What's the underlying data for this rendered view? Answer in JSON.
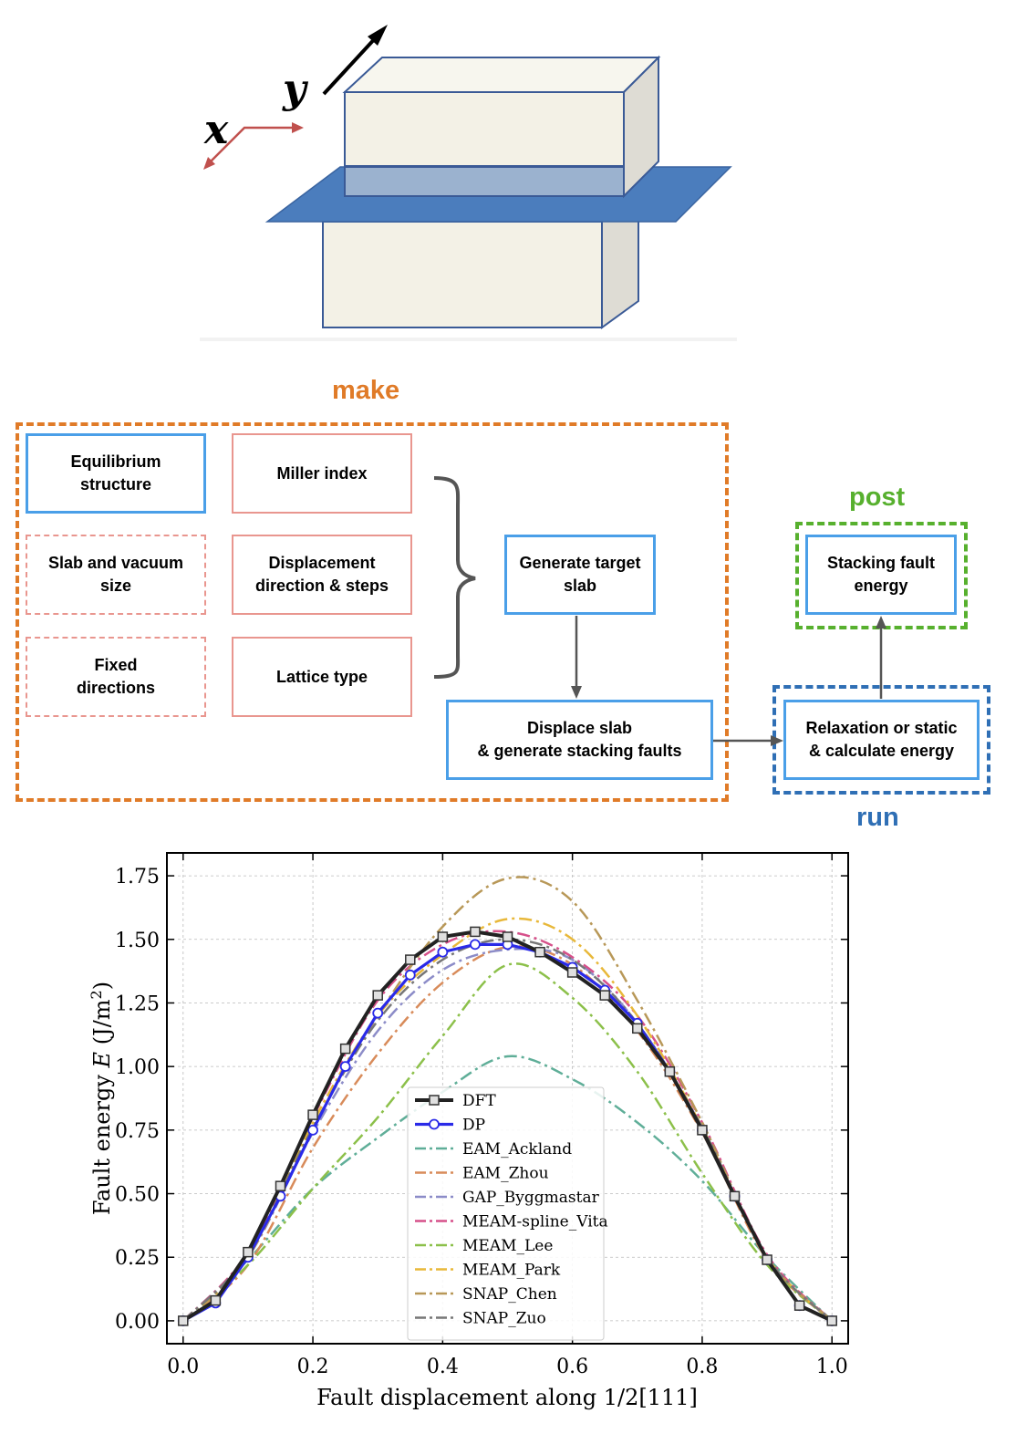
{
  "axes_schematic": {
    "x_label": "x",
    "y_label": "y"
  },
  "workflow": {
    "make": {
      "title": "make",
      "inputs": [
        {
          "key": "equilibrium",
          "label": "Equilibrium\nstructure"
        },
        {
          "key": "miller",
          "label": "Miller index"
        },
        {
          "key": "slab_vacuum",
          "label": "Slab and vacuum\nsize"
        },
        {
          "key": "displacement",
          "label": "Displacement\ndirection & steps"
        },
        {
          "key": "fixed_dirs",
          "label": "Fixed\ndirections"
        },
        {
          "key": "lattice",
          "label": "Lattice type"
        }
      ],
      "generate": "Generate target\nslab",
      "displace": "Displace slab\n& generate stacking faults"
    },
    "run": {
      "title": "run",
      "step": "Relaxation or static\n& calculate energy"
    },
    "post": {
      "title": "post",
      "step": "Stacking fault\nenergy"
    }
  },
  "colors": {
    "make": "#e07b28",
    "run": "#2f6fb5",
    "post": "#57b02e",
    "box_blue": "#4a9fe8",
    "box_red": "#e9968f"
  },
  "chart_data": {
    "type": "line",
    "xlabel": "Fault displacement along 1/2[111]",
    "ylabel_prefix": "Fault energy ",
    "ylabel_var": "E",
    "ylabel_unit": " (J/m",
    "ylabel_sup": "2",
    "ylabel_end": ")",
    "xlim": [
      -0.025,
      1.025
    ],
    "ylim": [
      -0.09,
      1.84
    ],
    "xticks": [
      "0.0",
      "0.2",
      "0.4",
      "0.6",
      "0.8",
      "1.0"
    ],
    "yticks": [
      "0.00",
      "0.25",
      "0.50",
      "0.75",
      "1.00",
      "1.25",
      "1.50",
      "1.75"
    ],
    "grid": true,
    "legend_position": "lower-center",
    "series": [
      {
        "name": "DFT",
        "color": "#222222",
        "style": "solid-square",
        "x": [
          0,
          0.05,
          0.1,
          0.15,
          0.2,
          0.25,
          0.3,
          0.35,
          0.4,
          0.45,
          0.5,
          0.55,
          0.6,
          0.65,
          0.7,
          0.75,
          0.8,
          0.85,
          0.9,
          0.95,
          1.0
        ],
        "y": [
          0.0,
          0.08,
          0.27,
          0.53,
          0.81,
          1.07,
          1.28,
          1.42,
          1.51,
          1.53,
          1.51,
          1.45,
          1.37,
          1.28,
          1.15,
          0.98,
          0.75,
          0.49,
          0.24,
          0.06,
          0.0
        ]
      },
      {
        "name": "DP",
        "color": "#2a2ae8",
        "style": "solid-circle",
        "x": [
          0,
          0.05,
          0.1,
          0.15,
          0.2,
          0.25,
          0.3,
          0.35,
          0.4,
          0.45,
          0.5,
          0.55,
          0.6,
          0.65,
          0.7,
          0.75,
          0.8,
          0.85,
          0.9,
          0.95,
          1.0
        ],
        "y": [
          0.0,
          0.07,
          0.25,
          0.49,
          0.75,
          1.0,
          1.21,
          1.36,
          1.45,
          1.48,
          1.48,
          1.45,
          1.39,
          1.3,
          1.17,
          0.98,
          0.75,
          0.49,
          0.24,
          0.06,
          0.0
        ]
      },
      {
        "name": "EAM_Ackland",
        "color": "#5fae98",
        "style": "dashdot",
        "x": [
          0,
          0.1,
          0.2,
          0.3,
          0.4,
          0.5,
          0.6,
          0.7,
          0.8,
          0.9,
          1.0
        ],
        "y": [
          0.0,
          0.24,
          0.52,
          0.72,
          0.9,
          1.04,
          0.95,
          0.78,
          0.55,
          0.25,
          0.0
        ]
      },
      {
        "name": "EAM_Zhou",
        "color": "#d88b5a",
        "style": "dashdot",
        "x": [
          0,
          0.1,
          0.2,
          0.3,
          0.4,
          0.5,
          0.6,
          0.7,
          0.8,
          0.9,
          1.0
        ],
        "y": [
          0.0,
          0.22,
          0.68,
          1.05,
          1.33,
          1.47,
          1.4,
          1.14,
          0.74,
          0.24,
          0.0
        ]
      },
      {
        "name": "GAP_Byggmastar",
        "color": "#8c8cc8",
        "style": "dashdot",
        "x": [
          0,
          0.1,
          0.2,
          0.3,
          0.4,
          0.5,
          0.6,
          0.7,
          0.8,
          0.9,
          1.0
        ],
        "y": [
          0.0,
          0.25,
          0.74,
          1.14,
          1.38,
          1.46,
          1.42,
          1.17,
          0.76,
          0.25,
          0.0
        ]
      },
      {
        "name": "MEAM-spline_Vita",
        "color": "#d6508a",
        "style": "dashdot",
        "x": [
          0,
          0.1,
          0.2,
          0.3,
          0.4,
          0.5,
          0.6,
          0.7,
          0.8,
          0.9,
          1.0
        ],
        "y": [
          0.0,
          0.27,
          0.8,
          1.26,
          1.48,
          1.53,
          1.43,
          1.2,
          0.78,
          0.26,
          0.0
        ]
      },
      {
        "name": "MEAM_Lee",
        "color": "#8cc04a",
        "style": "dashdot",
        "x": [
          0,
          0.1,
          0.2,
          0.3,
          0.4,
          0.5,
          0.6,
          0.7,
          0.8,
          0.9,
          1.0
        ],
        "y": [
          0.0,
          0.22,
          0.52,
          0.8,
          1.12,
          1.4,
          1.27,
          0.98,
          0.58,
          0.22,
          0.0
        ]
      },
      {
        "name": "MEAM_Park",
        "color": "#e8b83a",
        "style": "dashdot",
        "x": [
          0,
          0.1,
          0.2,
          0.3,
          0.4,
          0.5,
          0.6,
          0.7,
          0.8,
          0.9,
          1.0
        ],
        "y": [
          0.0,
          0.25,
          0.78,
          1.2,
          1.44,
          1.58,
          1.5,
          1.2,
          0.76,
          0.25,
          0.0
        ]
      },
      {
        "name": "SNAP_Chen",
        "color": "#b89858",
        "style": "dashdot",
        "x": [
          0,
          0.1,
          0.2,
          0.3,
          0.4,
          0.5,
          0.6,
          0.7,
          0.8,
          0.9,
          1.0
        ],
        "y": [
          0.0,
          0.25,
          0.76,
          1.2,
          1.55,
          1.74,
          1.65,
          1.26,
          0.78,
          0.25,
          0.0
        ]
      },
      {
        "name": "SNAP_Zuo",
        "color": "#777777",
        "style": "dashdot",
        "x": [
          0,
          0.1,
          0.2,
          0.3,
          0.4,
          0.5,
          0.6,
          0.7,
          0.8,
          0.9,
          1.0
        ],
        "y": [
          0.0,
          0.26,
          0.76,
          1.18,
          1.42,
          1.5,
          1.42,
          1.17,
          0.76,
          0.25,
          0.0
        ]
      }
    ]
  }
}
